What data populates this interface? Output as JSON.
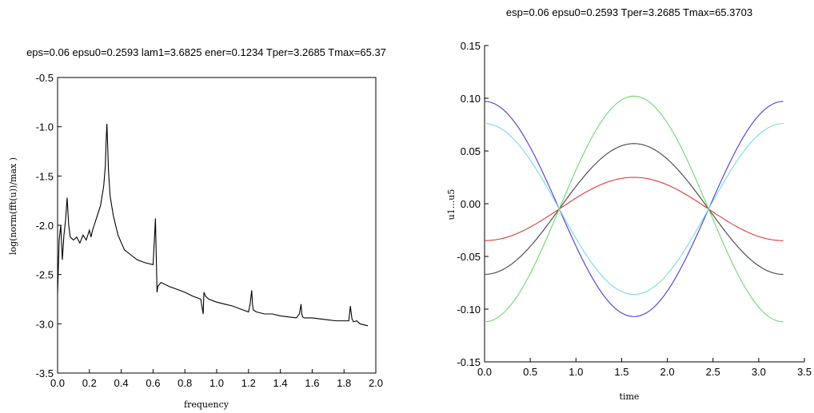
{
  "chart_data": [
    {
      "type": "line",
      "title": "eps=0.06 epsu0=0.2593 lam1=3.6825 ener=0.1234 Tper=3.2685 Tmax=65.37",
      "xlabel": "frequency",
      "ylabel": "log(norm(fft(u))/max )",
      "xlim": [
        0.0,
        2.0
      ],
      "ylim": [
        -3.5,
        -0.5
      ],
      "xticks": [
        "0.0",
        "0.2",
        "0.4",
        "0.6",
        "0.8",
        "1.0",
        "1.2",
        "1.4",
        "1.6",
        "1.8",
        "2.0"
      ],
      "yticks": [
        "-3.5",
        "-3.0",
        "-2.5",
        "-2.0",
        "-1.5",
        "-1.0",
        "-0.5"
      ],
      "grid": false,
      "series": [
        {
          "color": "#000000",
          "x": [
            0.0,
            0.01,
            0.02,
            0.03,
            0.04,
            0.05,
            0.06,
            0.07,
            0.08,
            0.1,
            0.12,
            0.14,
            0.16,
            0.18,
            0.2,
            0.21,
            0.22,
            0.23,
            0.25,
            0.27,
            0.29,
            0.3,
            0.305,
            0.31,
            0.315,
            0.32,
            0.33,
            0.35,
            0.38,
            0.42,
            0.46,
            0.5,
            0.55,
            0.6,
            0.61,
            0.615,
            0.62,
            0.625,
            0.63,
            0.65,
            0.7,
            0.75,
            0.8,
            0.85,
            0.9,
            0.915,
            0.92,
            0.925,
            0.93,
            0.95,
            1.0,
            1.05,
            1.1,
            1.15,
            1.2,
            1.21,
            1.22,
            1.225,
            1.23,
            1.25,
            1.3,
            1.35,
            1.4,
            1.45,
            1.5,
            1.52,
            1.53,
            1.535,
            1.54,
            1.55,
            1.6,
            1.65,
            1.7,
            1.75,
            1.8,
            1.83,
            1.84,
            1.85,
            1.86,
            1.88,
            1.9,
            1.95
          ],
          "y": [
            -2.7,
            -2.15,
            -2.0,
            -2.35,
            -2.1,
            -1.95,
            -1.72,
            -2.0,
            -2.12,
            -2.15,
            -2.12,
            -2.18,
            -2.1,
            -2.15,
            -2.05,
            -2.12,
            -2.05,
            -2.0,
            -1.9,
            -1.8,
            -1.6,
            -1.4,
            -1.15,
            -0.97,
            -1.2,
            -1.45,
            -1.7,
            -1.9,
            -2.1,
            -2.25,
            -2.3,
            -2.35,
            -2.38,
            -2.4,
            -2.1,
            -1.93,
            -2.3,
            -2.68,
            -2.62,
            -2.58,
            -2.62,
            -2.65,
            -2.68,
            -2.72,
            -2.75,
            -2.9,
            -2.68,
            -2.7,
            -2.72,
            -2.75,
            -2.78,
            -2.8,
            -2.82,
            -2.85,
            -2.88,
            -2.8,
            -2.66,
            -2.8,
            -2.86,
            -2.88,
            -2.9,
            -2.9,
            -2.92,
            -2.93,
            -2.94,
            -2.9,
            -2.8,
            -2.9,
            -2.93,
            -2.94,
            -2.94,
            -2.95,
            -2.96,
            -2.97,
            -2.97,
            -2.97,
            -2.82,
            -2.95,
            -2.98,
            -2.97,
            -3.0,
            -3.02
          ]
        }
      ]
    },
    {
      "type": "line",
      "title": "esp=0.06 epsu0=0.2593 Tper=3.2685 Tmax=65.3703",
      "xlabel": "time",
      "ylabel": "u1...u5",
      "xlim": [
        0.0,
        3.5
      ],
      "ylim": [
        -0.15,
        0.15
      ],
      "xticks": [
        "0.0",
        "0.5",
        "1.0",
        "1.5",
        "2.0",
        "2.5",
        "3.0",
        "3.5"
      ],
      "yticks": [
        "-0.15",
        "-0.10",
        "-0.05",
        "0.00",
        "0.05",
        "0.10",
        "0.15"
      ],
      "grid": false,
      "period": 3.2685,
      "series": [
        {
          "color": "#4b3ccf",
          "amplitude": 0.102,
          "offset": -0.005
        },
        {
          "color": "#79d9e6",
          "amplitude": 0.081,
          "offset": -0.005
        },
        {
          "color": "#444444",
          "amplitude": -0.062,
          "offset": -0.005
        },
        {
          "color": "#d93b3b",
          "amplitude": -0.03,
          "offset": -0.005
        },
        {
          "color": "#6fd66f",
          "amplitude": -0.107,
          "offset": -0.005
        }
      ]
    }
  ]
}
